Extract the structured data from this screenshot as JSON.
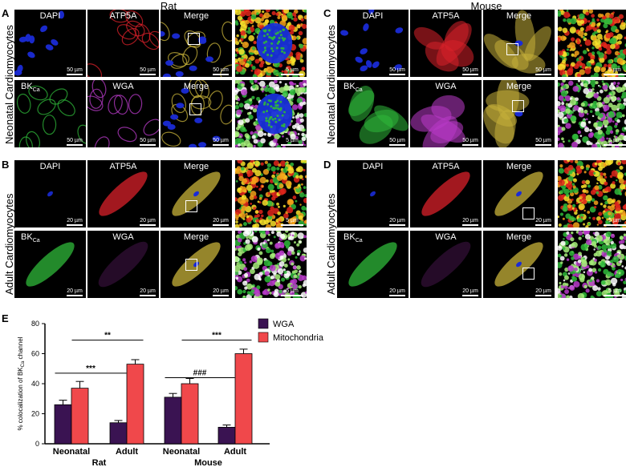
{
  "panels": {
    "A": "A",
    "B": "B",
    "C": "C",
    "D": "D",
    "E": "E"
  },
  "species": {
    "rat": "Rat",
    "mouse": "Mouse"
  },
  "row_labels": {
    "neonatal": "Neonatal Cardiomyocytes",
    "adult": "Adult Cardiomyocytes"
  },
  "micro": {
    "dapi": "DAPI",
    "atp5a": "ATP5A",
    "merge": "Merge",
    "bk": "BK",
    "bk_sub": "Ca",
    "wga": "WGA"
  },
  "scales": {
    "s50": "50 µm",
    "s20": "20 µm",
    "s5": "5 µm"
  },
  "chart_data": {
    "type": "bar",
    "groups": [
      "Neonatal",
      "Adult",
      "Neonatal",
      "Adult"
    ],
    "group_categories": [
      "Rat",
      "Mouse"
    ],
    "series": [
      {
        "name": "WGA",
        "color": "#3a1352",
        "values": [
          26,
          14,
          31,
          11
        ],
        "errors": [
          3,
          1.5,
          2.5,
          1.5
        ]
      },
      {
        "name": "Mitochondria",
        "color": "#f0484b",
        "values": [
          37,
          53,
          40,
          60
        ],
        "errors": [
          4.5,
          3,
          3.5,
          3
        ]
      }
    ],
    "ylabel": "% colocalization of BK",
    "ylabel_sub": "Ca",
    "ylabel_tail": " channel",
    "yticks": [
      0,
      20,
      40,
      60,
      80
    ],
    "ylim": [
      0,
      80
    ],
    "significance": [
      {
        "label": "***",
        "level": 47
      },
      {
        "label": "**",
        "level": 69
      },
      {
        "label": "###",
        "level": 44
      },
      {
        "label": "***",
        "level": 69
      }
    ]
  }
}
